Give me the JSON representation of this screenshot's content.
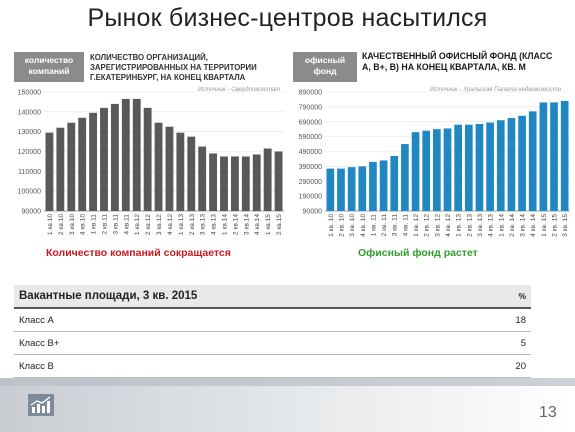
{
  "slide": {
    "title": "Рынок бизнес-центров насытился",
    "page_number": "13"
  },
  "left_panel": {
    "tag": "количество компаний",
    "caption": "Количество организаций, зарегистрированных на территории г.Екатеринбург, на конец квартала",
    "source": "Источник - Свердловскстат",
    "subcaption": "Количество компаний сокращается",
    "subcaption_color": "#c8191e"
  },
  "right_panel": {
    "tag": "офисный фонд",
    "caption": "Качественный офисный фонд (класс А, В+, В) на конец квартала, кв. м",
    "source": "Источник - Уральская Палата недвижимости",
    "subcaption": "Офисный фонд растет",
    "subcaption_color": "#2e9e2e"
  },
  "table": {
    "header": "Вакантные площади, 3 кв. 2015",
    "header_unit": "%",
    "rows": [
      {
        "label": "Класс А",
        "value": "18"
      },
      {
        "label": "Класс В+",
        "value": "5"
      },
      {
        "label": "Класс В",
        "value": "20"
      }
    ]
  },
  "chart_data": [
    {
      "type": "bar",
      "color": "#595959",
      "categories": [
        "1 кв.10",
        "2 кв.10",
        "3 кв.10",
        "4 кв.10",
        "1 кв.11",
        "2 кв.11",
        "3 кв.11",
        "4 кв.11",
        "1 кв.12",
        "2 кв.12",
        "3 кв.12",
        "4 кв.12",
        "1 кв.13",
        "2 кв.13",
        "3 кв.13",
        "4 кв.13",
        "1 кв.14",
        "2 кв.14",
        "3 кв.14",
        "4 кв.14",
        "1 кв.15",
        "2 кв.15"
      ],
      "values": [
        129500,
        132000,
        134500,
        137000,
        139500,
        142000,
        144000,
        146500,
        146500,
        142000,
        134500,
        132500,
        129500,
        127500,
        122500,
        119000,
        117500,
        117500,
        117500,
        118500,
        121500,
        120000
      ],
      "yticks": [
        90000,
        100000,
        110000,
        120000,
        130000,
        140000,
        150000
      ],
      "ytick_labels": [
        "90000",
        "100000",
        "110000",
        "120000",
        "130000",
        "140000",
        "150000"
      ],
      "ylim": [
        90000,
        150000
      ]
    },
    {
      "type": "bar",
      "color": "#1f87c4",
      "categories": [
        "1 кв. 10",
        "2 кв. 10",
        "3 кв. 10",
        "4 кв. 10",
        "1 кв. 11",
        "2 кв. 11",
        "3 кв. 11",
        "4 кв. 11",
        "1 кв. 12",
        "2 кв. 12",
        "3 кв. 12",
        "4 кв. 12",
        "1 кв. 13",
        "2 кв. 13",
        "3 кв. 13",
        "4 кв. 13",
        "1 кв. 14",
        "2 кв. 14",
        "3 кв. 14",
        "4 кв. 14",
        "1 кв. 15",
        "2 кв. 15",
        "3 кв. 15"
      ],
      "values": [
        375000,
        375000,
        385000,
        390000,
        420000,
        430000,
        460000,
        540000,
        620000,
        630000,
        640000,
        645000,
        670000,
        670000,
        675000,
        685000,
        700000,
        715000,
        730000,
        760000,
        820000,
        820000,
        830000
      ],
      "yticks": [
        90000,
        190000,
        290000,
        390000,
        490000,
        590000,
        690000,
        790000,
        890000
      ],
      "ytick_labels": [
        "90000",
        "190000",
        "290000",
        "390000",
        "490000",
        "590000",
        "690000",
        "790000",
        "890000"
      ],
      "ylim": [
        90000,
        890000
      ]
    }
  ]
}
